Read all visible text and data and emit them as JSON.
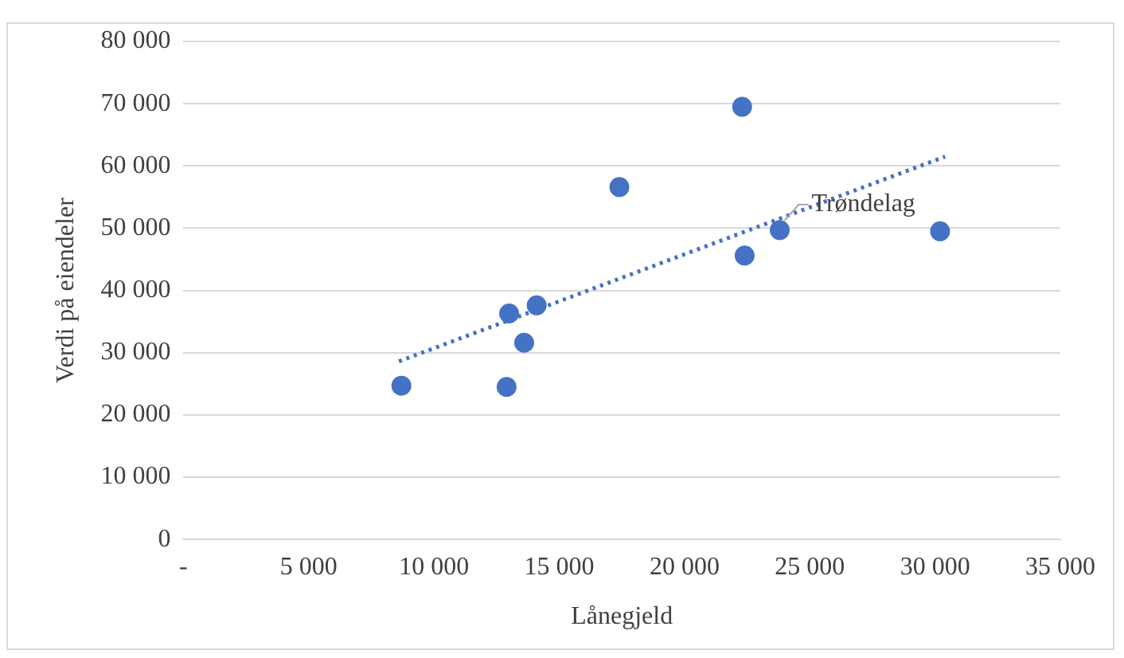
{
  "chart_data": {
    "type": "scatter",
    "xlabel": "Lånegjeld",
    "ylabel": "Verdi på eiendeler",
    "x": [
      8700,
      13000,
      12900,
      13600,
      14100,
      17400,
      22300,
      22400,
      23800,
      30200
    ],
    "series": [
      {
        "color": "#4472c4",
        "marker": "circle",
        "values": [
          24700,
          36300,
          24500,
          31600,
          37600,
          56600,
          69500,
          45600,
          49700,
          49500
        ]
      },
      {
        "type": "line",
        "color": "#4472c4",
        "marker": "none",
        "line_style": "dotted",
        "x": [
          8600,
          30400
        ],
        "values": [
          28600,
          61500
        ]
      }
    ],
    "xlim": [
      0,
      35000
    ],
    "ylim": [
      0,
      80000
    ],
    "xticks": [
      {
        "value": 0,
        "label": "-"
      },
      {
        "value": 5000,
        "label": "5 000"
      },
      {
        "value": 10000,
        "label": "10 000"
      },
      {
        "value": 15000,
        "label": "15 000"
      },
      {
        "value": 20000,
        "label": "20 000"
      },
      {
        "value": 25000,
        "label": "25 000"
      },
      {
        "value": 30000,
        "label": "30 000"
      },
      {
        "value": 35000,
        "label": "35 000"
      }
    ],
    "yticks": [
      0,
      {
        "value": 10000,
        "label": "10 000"
      },
      {
        "value": 20000,
        "label": "20 000"
      },
      {
        "value": 30000,
        "label": "30 000"
      },
      {
        "value": 40000,
        "label": "40 000"
      },
      {
        "value": 50000,
        "label": "50 000"
      },
      {
        "value": 60000,
        "label": "60 000"
      },
      {
        "value": 70000,
        "label": "70 000"
      },
      {
        "value": 80000,
        "label": "80 000"
      }
    ],
    "grid": "y",
    "legend": false,
    "annotations": [
      {
        "text": "Trøndelag",
        "x": 23800,
        "y": 49700
      }
    ]
  }
}
